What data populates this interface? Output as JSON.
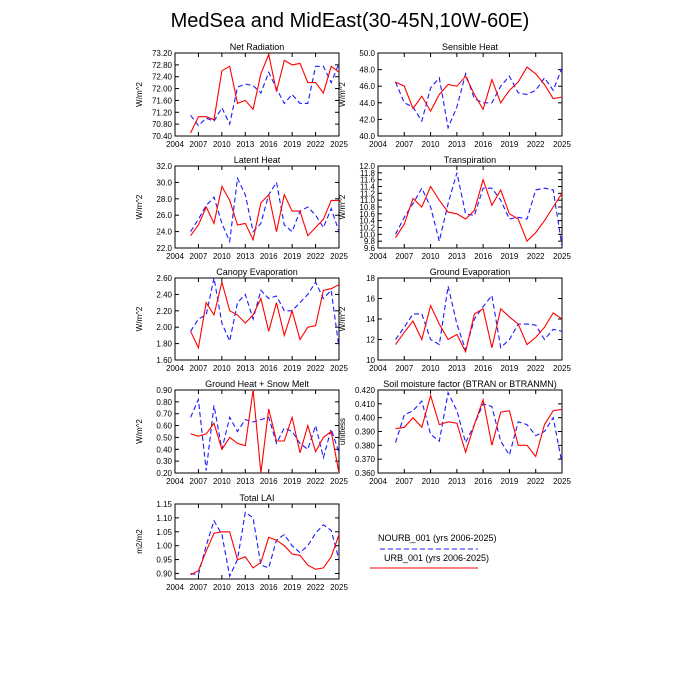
{
  "figure": {
    "title": "MedSea and MidEast(30-45N,10W-60E)"
  },
  "legend": {
    "items": [
      {
        "label": "NOURB_001 (yrs 2006-2025)",
        "color": "#1a1aff",
        "dash": true
      },
      {
        "label": "URB_001 (yrs 2006-2025)",
        "color": "#ff0000",
        "dash": false
      }
    ]
  },
  "chart_data": [
    {
      "type": "line",
      "title": "Net Radiation",
      "ylabel": "W/m^2",
      "xlim": [
        2004,
        2025
      ],
      "xticks": [
        2004,
        2007,
        2010,
        2013,
        2016,
        2019,
        2022,
        2025
      ],
      "ylim": [
        70.4,
        73.2
      ],
      "yticks": [
        "70.40",
        "70.80",
        "71.20",
        "71.60",
        "72.00",
        "72.40",
        "72.80",
        "73.20"
      ],
      "x": [
        2006,
        2007,
        2008,
        2009,
        2010,
        2011,
        2012,
        2013,
        2014,
        2015,
        2016,
        2017,
        2018,
        2019,
        2020,
        2021,
        2022,
        2023,
        2024,
        2025
      ],
      "series": [
        {
          "name": "URB_001",
          "values": [
            70.5,
            71.05,
            71.05,
            70.95,
            72.6,
            72.75,
            71.5,
            71.6,
            71.3,
            72.5,
            73.15,
            71.9,
            72.95,
            72.8,
            72.85,
            72.2,
            72.2,
            71.85,
            72.75,
            72.55
          ]
        },
        {
          "name": "NOURB_001",
          "values": [
            71.1,
            70.75,
            71.0,
            70.9,
            71.35,
            70.8,
            72.05,
            72.15,
            72.1,
            71.85,
            72.55,
            72.0,
            71.5,
            71.8,
            71.5,
            71.5,
            72.75,
            72.75,
            72.2,
            72.85
          ]
        }
      ]
    },
    {
      "type": "line",
      "title": "Sensible Heat",
      "ylabel": "W/m^2",
      "xlim": [
        2004,
        2025
      ],
      "xticks": [
        2004,
        2007,
        2010,
        2013,
        2016,
        2019,
        2022,
        2025
      ],
      "ylim": [
        40.0,
        50.0
      ],
      "yticks": [
        "40.0",
        "42.0",
        "44.0",
        "46.0",
        "48.0",
        "50.0"
      ],
      "x": [
        2006,
        2007,
        2008,
        2009,
        2010,
        2011,
        2012,
        2013,
        2014,
        2015,
        2016,
        2017,
        2018,
        2019,
        2020,
        2021,
        2022,
        2023,
        2024,
        2025
      ],
      "series": [
        {
          "name": "URB_001",
          "values": [
            46.5,
            46.0,
            43.3,
            44.8,
            43.0,
            45.0,
            46.2,
            46.0,
            47.2,
            45.0,
            43.2,
            46.8,
            44.0,
            45.5,
            46.5,
            48.3,
            47.5,
            46.2,
            44.5,
            44.7
          ]
        },
        {
          "name": "NOURB_001",
          "values": [
            46.5,
            44.0,
            43.5,
            41.8,
            45.8,
            47.0,
            41.0,
            43.5,
            47.5,
            44.5,
            44.0,
            44.0,
            46.0,
            47.2,
            45.2,
            45.0,
            45.5,
            47.0,
            45.5,
            48.2
          ]
        }
      ]
    },
    {
      "type": "line",
      "title": "Latent Heat",
      "ylabel": "W/m^2",
      "xlim": [
        2004,
        2025
      ],
      "xticks": [
        2004,
        2007,
        2010,
        2013,
        2016,
        2019,
        2022,
        2025
      ],
      "ylim": [
        22.0,
        32.0
      ],
      "yticks": [
        "22.0",
        "24.0",
        "26.0",
        "28.0",
        "30.0",
        "32.0"
      ],
      "x": [
        2006,
        2007,
        2008,
        2009,
        2010,
        2011,
        2012,
        2013,
        2014,
        2015,
        2016,
        2017,
        2018,
        2019,
        2020,
        2021,
        2022,
        2023,
        2024,
        2025
      ],
      "series": [
        {
          "name": "URB_001",
          "values": [
            23.5,
            24.8,
            27.0,
            25.0,
            29.5,
            27.8,
            24.8,
            25.0,
            23.0,
            27.5,
            28.5,
            24.0,
            28.5,
            26.5,
            26.5,
            23.5,
            24.5,
            25.5,
            27.8,
            27.8
          ]
        },
        {
          "name": "NOURB_001",
          "values": [
            24.0,
            25.5,
            27.2,
            28.2,
            25.0,
            22.8,
            30.5,
            28.5,
            24.0,
            25.0,
            28.5,
            30.0,
            24.8,
            24.0,
            26.5,
            27.0,
            26.0,
            24.5,
            26.8,
            24.0
          ]
        }
      ]
    },
    {
      "type": "line",
      "title": "Transpiration",
      "ylabel": "W/m^2",
      "xlim": [
        2004,
        2025
      ],
      "xticks": [
        2004,
        2007,
        2010,
        2013,
        2016,
        2019,
        2022,
        2025
      ],
      "ylim": [
        9.6,
        12.0
      ],
      "yticks": [
        "9.6",
        "9.8",
        "10.0",
        "10.2",
        "10.4",
        "10.6",
        "10.8",
        "11.0",
        "11.2",
        "11.4",
        "11.6",
        "11.8",
        "12.0"
      ],
      "x": [
        2006,
        2007,
        2008,
        2009,
        2010,
        2011,
        2012,
        2013,
        2014,
        2015,
        2016,
        2017,
        2018,
        2019,
        2020,
        2021,
        2022,
        2023,
        2024,
        2025
      ],
      "series": [
        {
          "name": "URB_001",
          "values": [
            9.9,
            10.3,
            11.05,
            10.8,
            11.4,
            11.0,
            10.65,
            10.6,
            10.45,
            10.7,
            11.6,
            10.85,
            11.3,
            10.6,
            10.45,
            9.8,
            10.05,
            10.4,
            10.8,
            11.2
          ]
        },
        {
          "name": "NOURB_001",
          "values": [
            10.0,
            10.5,
            10.9,
            11.35,
            10.8,
            9.8,
            10.9,
            11.8,
            10.6,
            10.55,
            11.35,
            11.35,
            11.0,
            10.45,
            10.5,
            10.45,
            11.3,
            11.35,
            11.3,
            9.65
          ]
        }
      ]
    },
    {
      "type": "line",
      "title": "Canopy Evaporation",
      "ylabel": "W/m^2",
      "xlim": [
        2004,
        2025
      ],
      "xticks": [
        2004,
        2007,
        2010,
        2013,
        2016,
        2019,
        2022,
        2025
      ],
      "ylim": [
        1.6,
        2.6
      ],
      "yticks": [
        "1.60",
        "1.80",
        "2.00",
        "2.20",
        "2.40",
        "2.60"
      ],
      "x": [
        2006,
        2007,
        2008,
        2009,
        2010,
        2011,
        2012,
        2013,
        2014,
        2015,
        2016,
        2017,
        2018,
        2019,
        2020,
        2021,
        2022,
        2023,
        2024,
        2025
      ],
      "series": [
        {
          "name": "URB_001",
          "values": [
            1.95,
            1.75,
            2.3,
            2.15,
            2.55,
            2.2,
            2.15,
            2.05,
            2.15,
            2.35,
            1.95,
            2.3,
            1.9,
            2.2,
            1.85,
            2.0,
            2.02,
            2.45,
            2.47,
            2.52
          ]
        },
        {
          "name": "NOURB_001",
          "values": [
            1.95,
            2.1,
            2.15,
            2.6,
            2.05,
            1.83,
            2.3,
            2.4,
            2.1,
            2.45,
            2.35,
            2.38,
            2.2,
            2.2,
            2.3,
            2.4,
            2.55,
            2.35,
            2.45,
            1.75
          ]
        }
      ]
    },
    {
      "type": "line",
      "title": "Ground Evaporation",
      "ylabel": "W/m^2",
      "xlim": [
        2004,
        2025
      ],
      "xticks": [
        2004,
        2007,
        2010,
        2013,
        2016,
        2019,
        2022,
        2025
      ],
      "ylim": [
        10,
        18
      ],
      "yticks": [
        "10",
        "12",
        "14",
        "16",
        "18"
      ],
      "x": [
        2006,
        2007,
        2008,
        2009,
        2010,
        2011,
        2012,
        2013,
        2014,
        2015,
        2016,
        2017,
        2018,
        2019,
        2020,
        2021,
        2022,
        2023,
        2024,
        2025
      ],
      "series": [
        {
          "name": "URB_001",
          "values": [
            11.5,
            12.7,
            13.8,
            12.0,
            15.3,
            13.5,
            12.0,
            12.5,
            10.8,
            14.5,
            15.0,
            11.2,
            15.0,
            14.2,
            13.5,
            11.5,
            12.2,
            13.2,
            14.6,
            14.0
          ]
        },
        {
          "name": "NOURB_001",
          "values": [
            12.0,
            13.2,
            14.5,
            14.5,
            12.0,
            11.5,
            17.2,
            13.5,
            11.0,
            14.0,
            15.2,
            16.3,
            11.2,
            12.0,
            13.5,
            13.5,
            13.4,
            12.0,
            13.0,
            12.8
          ]
        }
      ]
    },
    {
      "type": "line",
      "title": "Ground Heat + Snow Melt",
      "ylabel": "W/m^2",
      "xlim": [
        2004,
        2025
      ],
      "xticks": [
        2004,
        2007,
        2010,
        2013,
        2016,
        2019,
        2022,
        2025
      ],
      "ylim": [
        0.2,
        0.9
      ],
      "yticks": [
        "0.20",
        "0.30",
        "0.40",
        "0.50",
        "0.60",
        "0.70",
        "0.80",
        "0.90"
      ],
      "x": [
        2006,
        2007,
        2008,
        2009,
        2010,
        2011,
        2012,
        2013,
        2014,
        2015,
        2016,
        2017,
        2018,
        2019,
        2020,
        2021,
        2022,
        2023,
        2024,
        2025
      ],
      "series": [
        {
          "name": "URB_001",
          "values": [
            0.53,
            0.51,
            0.53,
            0.62,
            0.4,
            0.5,
            0.45,
            0.43,
            0.9,
            0.2,
            0.74,
            0.47,
            0.47,
            0.67,
            0.37,
            0.6,
            0.38,
            0.5,
            0.55,
            0.2
          ]
        },
        {
          "name": "NOURB_001",
          "values": [
            0.67,
            0.82,
            0.22,
            0.77,
            0.4,
            0.67,
            0.55,
            0.65,
            0.63,
            0.65,
            0.67,
            0.45,
            0.58,
            0.55,
            0.45,
            0.4,
            0.6,
            0.33,
            0.57,
            0.37
          ]
        }
      ]
    },
    {
      "type": "line",
      "title": "Soil moisture factor (BTRAN or BTRANMN)",
      "ylabel": "unitless",
      "xlim": [
        2004,
        2025
      ],
      "xticks": [
        2004,
        2007,
        2010,
        2013,
        2016,
        2019,
        2022,
        2025
      ],
      "ylim": [
        0.36,
        0.42
      ],
      "yticks": [
        "0.360",
        "0.370",
        "0.380",
        "0.390",
        "0.400",
        "0.410",
        "0.420"
      ],
      "x": [
        2006,
        2007,
        2008,
        2009,
        2010,
        2011,
        2012,
        2013,
        2014,
        2015,
        2016,
        2017,
        2018,
        2019,
        2020,
        2021,
        2022,
        2023,
        2024,
        2025
      ],
      "series": [
        {
          "name": "URB_001",
          "values": [
            0.392,
            0.393,
            0.4,
            0.393,
            0.416,
            0.395,
            0.397,
            0.396,
            0.375,
            0.395,
            0.413,
            0.38,
            0.404,
            0.405,
            0.38,
            0.38,
            0.372,
            0.395,
            0.405,
            0.406
          ]
        },
        {
          "name": "NOURB_001",
          "values": [
            0.382,
            0.402,
            0.405,
            0.412,
            0.388,
            0.383,
            0.418,
            0.405,
            0.382,
            0.395,
            0.41,
            0.408,
            0.383,
            0.373,
            0.397,
            0.395,
            0.387,
            0.39,
            0.4,
            0.367
          ]
        }
      ]
    },
    {
      "type": "line",
      "title": "Total LAI",
      "ylabel": "m2/m2",
      "xlim": [
        2004,
        2025
      ],
      "xticks": [
        2004,
        2007,
        2010,
        2013,
        2016,
        2019,
        2022,
        2025
      ],
      "ylim": [
        0.88,
        1.15
      ],
      "yticks": [
        "0.90",
        "0.95",
        "1.00",
        "1.05",
        "1.10",
        "1.15"
      ],
      "x": [
        2006,
        2007,
        2008,
        2009,
        2010,
        2011,
        2012,
        2013,
        2014,
        2015,
        2016,
        2017,
        2018,
        2019,
        2020,
        2021,
        2022,
        2023,
        2024,
        2025
      ],
      "series": [
        {
          "name": "URB_001",
          "values": [
            0.895,
            0.91,
            0.98,
            1.045,
            1.05,
            1.05,
            0.95,
            0.96,
            0.92,
            0.94,
            1.03,
            1.02,
            1.0,
            0.97,
            0.965,
            0.93,
            0.915,
            0.92,
            0.96,
            1.04
          ]
        },
        {
          "name": "NOURB_001",
          "values": [
            0.9,
            0.895,
            1.0,
            1.09,
            1.04,
            0.89,
            0.95,
            1.12,
            1.1,
            0.93,
            0.92,
            1.02,
            1.04,
            1.0,
            0.975,
            1.0,
            1.045,
            1.075,
            1.055,
            0.95
          ]
        }
      ]
    }
  ]
}
